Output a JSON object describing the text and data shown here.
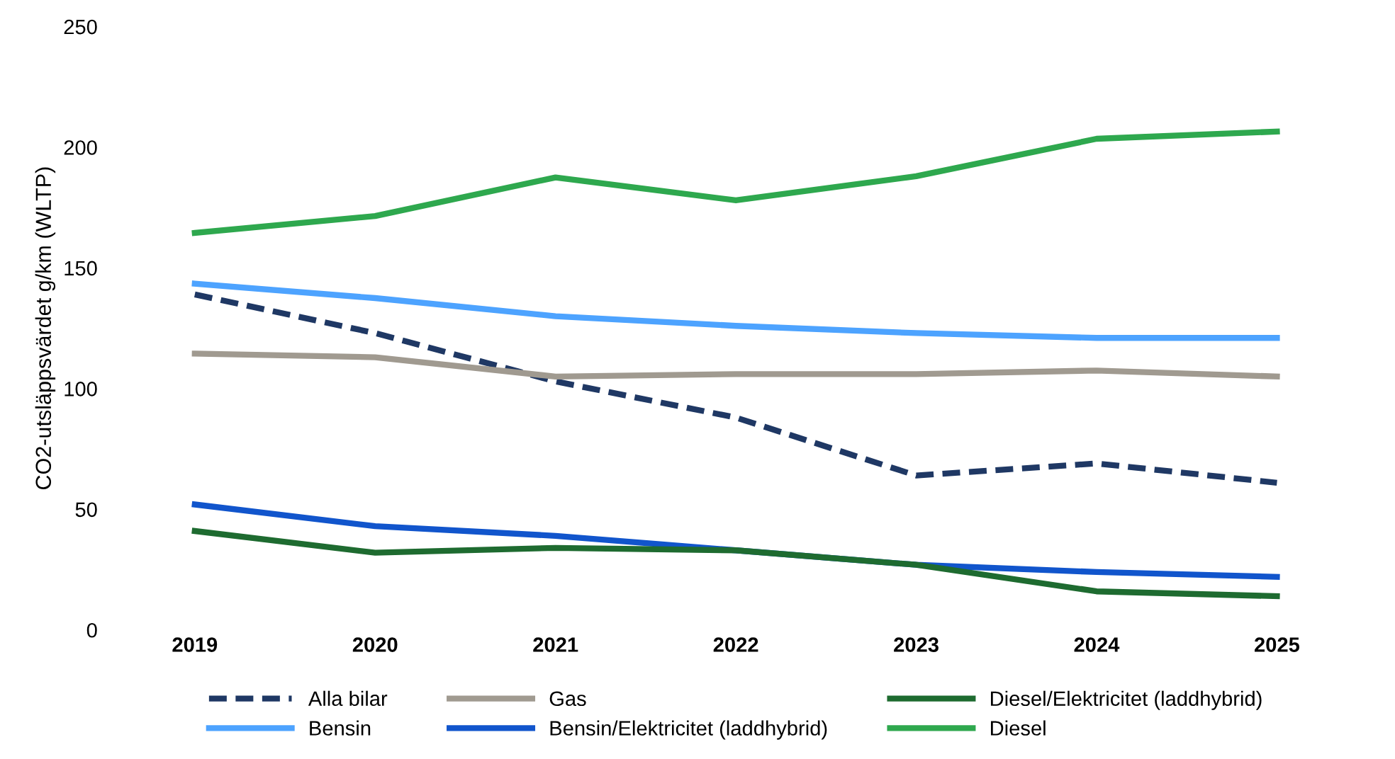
{
  "chart_data": {
    "type": "line",
    "ylabel": "CO2-utsläppsvärdet g/km (WLTP)",
    "categories": [
      "2019",
      "2020",
      "2021",
      "2022",
      "2023",
      "2024",
      "2025"
    ],
    "ylim": [
      0,
      250
    ],
    "yticks": [
      0,
      50,
      100,
      150,
      200,
      250
    ],
    "grid": false,
    "legend": "bottom",
    "marker": "none",
    "series": [
      {
        "name": "Alla bilar",
        "color": "#1f3864",
        "line_style": "dashed",
        "values": [
          139,
          123,
          103,
          88,
          64,
          69,
          61
        ]
      },
      {
        "name": "Bensin",
        "color": "#4da3ff",
        "line_style": "solid",
        "values": [
          143.5,
          137.5,
          130,
          126,
          123,
          121,
          121
        ]
      },
      {
        "name": "Gas",
        "color": "#a09a90",
        "line_style": "solid",
        "values": [
          114.5,
          113,
          105,
          106,
          106,
          107.5,
          105
        ]
      },
      {
        "name": "Bensin/Elektricitet (laddhybrid)",
        "color": "#1155cc",
        "line_style": "solid",
        "values": [
          52,
          43,
          39,
          33,
          27,
          24,
          22
        ]
      },
      {
        "name": "Diesel/Elektricitet (laddhybrid)",
        "color": "#1e6b30",
        "line_style": "solid",
        "values": [
          41,
          32,
          34,
          33,
          27,
          16,
          14
        ]
      },
      {
        "name": "Diesel",
        "color": "#2ea84e",
        "line_style": "solid",
        "values": [
          164.5,
          171.5,
          187.5,
          178,
          188,
          203.5,
          206.5
        ]
      }
    ]
  }
}
